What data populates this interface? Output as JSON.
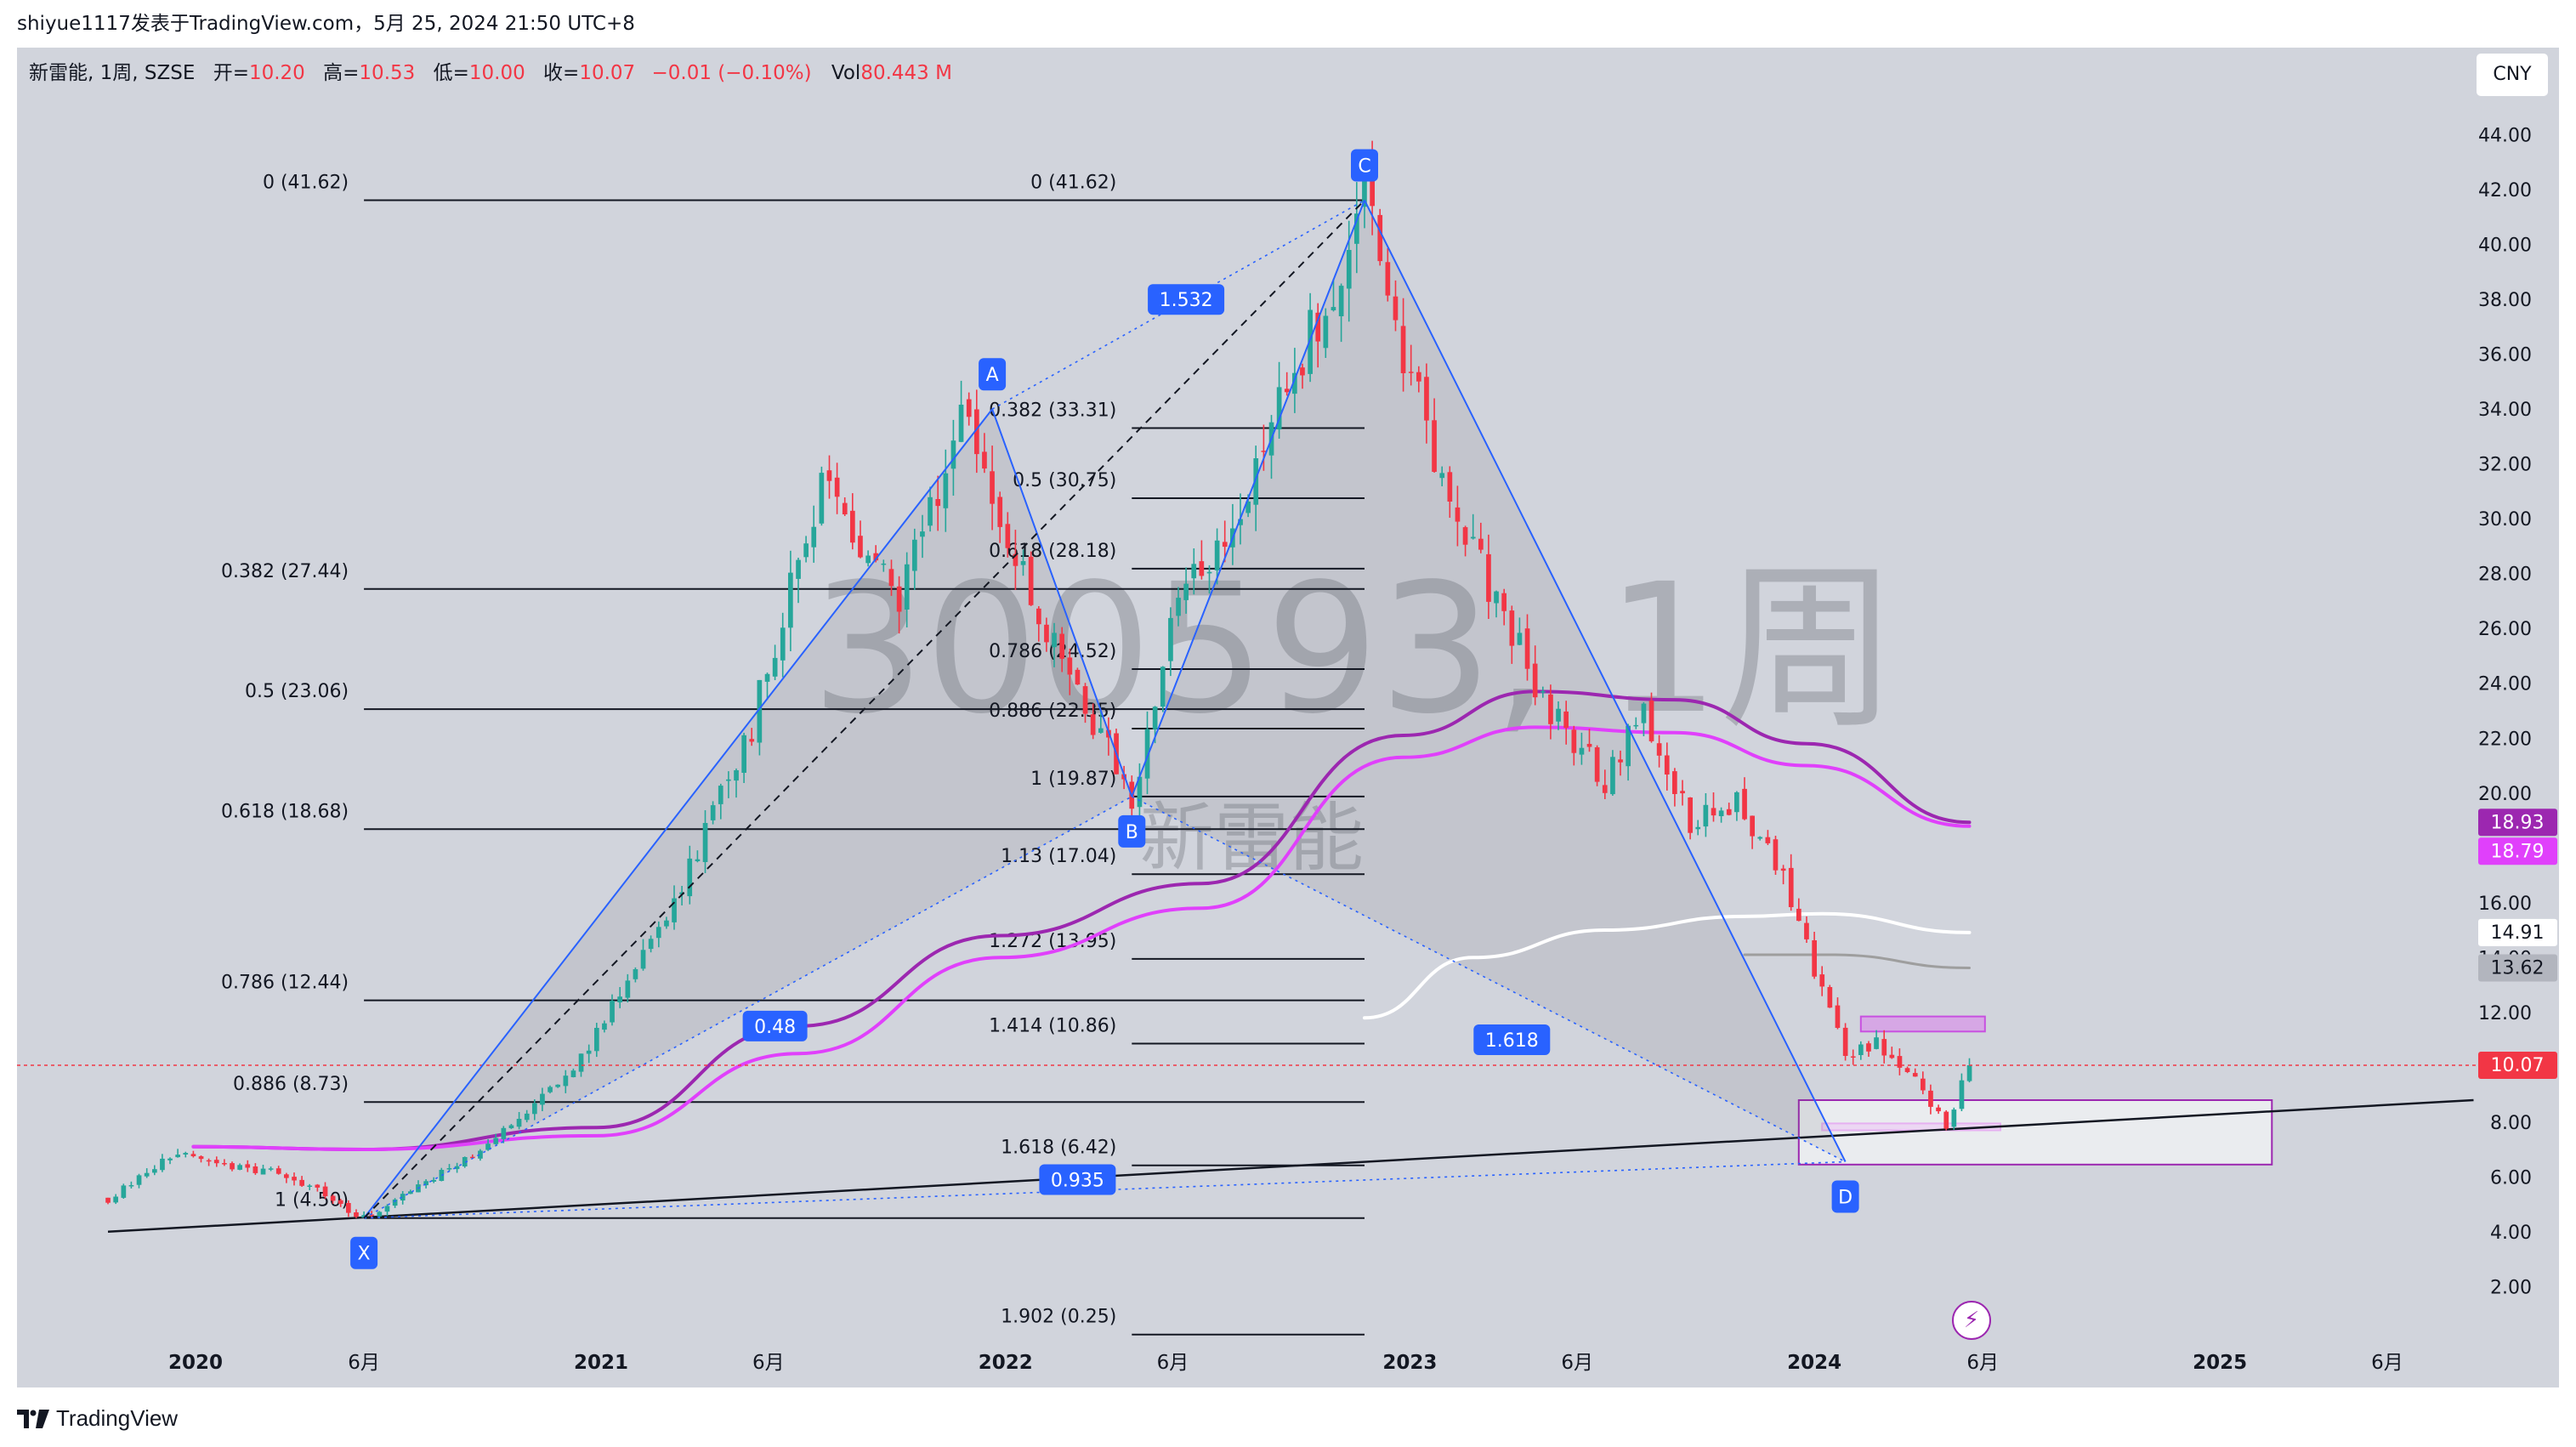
{
  "header": {
    "title": "shiyue1117发表于TradingView.com，5月 25, 2024 21:50 UTC+8"
  },
  "legend": {
    "symbol": "新雷能, 1周, SZSE",
    "open_label": "开=",
    "open": "10.20",
    "high_label": "高=",
    "high": "10.53",
    "low_label": "低=",
    "low": "10.00",
    "close_label": "收=",
    "close": "10.07",
    "change": "−0.01 (−0.10%)",
    "vol_label": "Vol",
    "vol": "80.443 M"
  },
  "currency_button": "CNY",
  "watermark": {
    "ticker": "300593, 1周",
    "name": "新雷能"
  },
  "footer": {
    "brand": "TradingView"
  },
  "colors": {
    "up": "#26a69a",
    "down": "#f23645",
    "pattern_blue": "#2962ff",
    "ma_purple": "#9c27b0",
    "ma_magenta": "#e040fb",
    "ma_white": "#ffffff",
    "ma_gray": "#9e9e9e",
    "price_line": "#f23645",
    "background": "#d1d4dc"
  },
  "chart_data": {
    "type": "candlestick",
    "title": "新雷能, 1周, SZSE",
    "ylim": [
      0.8,
      45.2
    ],
    "y_ticks": [
      "2.00",
      "4.00",
      "6.00",
      "8.00",
      "10.00",
      "12.00",
      "14.00",
      "16.00",
      "18.00",
      "20.00",
      "22.00",
      "24.00",
      "26.00",
      "28.00",
      "30.00",
      "32.00",
      "34.00",
      "36.00",
      "38.00",
      "40.00",
      "42.00",
      "44.00"
    ],
    "x_ticks": [
      {
        "label": "2020",
        "date": "2020-01-01",
        "bold": true
      },
      {
        "label": "6月",
        "date": "2020-06-01"
      },
      {
        "label": "2021",
        "date": "2021-01-01",
        "bold": true
      },
      {
        "label": "6月",
        "date": "2021-06-01"
      },
      {
        "label": "2022",
        "date": "2022-01-01",
        "bold": true
      },
      {
        "label": "6月",
        "date": "2022-06-01"
      },
      {
        "label": "2023",
        "date": "2023-01-01",
        "bold": true
      },
      {
        "label": "6月",
        "date": "2023-06-01"
      },
      {
        "label": "2024",
        "date": "2024-01-01",
        "bold": true
      },
      {
        "label": "6月",
        "date": "2024-06-01"
      },
      {
        "label": "2025",
        "date": "2025-01-01",
        "bold": true
      },
      {
        "label": "6月",
        "date": "2025-06-01"
      }
    ],
    "price_labels": [
      {
        "value": 18.93,
        "text": "18.93",
        "bg": "#9c27b0",
        "fg": "#ffffff"
      },
      {
        "value": 18.79,
        "text": "18.79",
        "bg": "#e040fb",
        "fg": "#ffffff"
      },
      {
        "value": 14.91,
        "text": "14.91",
        "bg": "#ffffff",
        "fg": "#131722"
      },
      {
        "value": 13.62,
        "text": "13.62",
        "bg": "#b2b5be",
        "fg": "#131722"
      },
      {
        "value": 10.07,
        "text": "10.07",
        "bg": "#f23645",
        "fg": "#ffffff"
      }
    ],
    "current_price": 10.07,
    "anchors": [
      {
        "date": "2019-10-14",
        "price": 5.2
      },
      {
        "date": "2019-12-09",
        "price": 6.8
      },
      {
        "date": "2020-03-23",
        "price": 6.1
      },
      {
        "date": "2020-06-01",
        "price": 4.5
      },
      {
        "date": "2020-09-14",
        "price": 6.9
      },
      {
        "date": "2020-12-07",
        "price": 9.8
      },
      {
        "date": "2021-03-01",
        "price": 15.5
      },
      {
        "date": "2021-05-17",
        "price": 22.5
      },
      {
        "date": "2021-07-19",
        "price": 31.5
      },
      {
        "date": "2021-09-27",
        "price": 26.8
      },
      {
        "date": "2021-11-22",
        "price": 34.0
      },
      {
        "date": "2022-01-17",
        "price": 28.0
      },
      {
        "date": "2022-03-14",
        "price": 23.0
      },
      {
        "date": "2022-04-25",
        "price": 19.87
      },
      {
        "date": "2022-06-06",
        "price": 27.0
      },
      {
        "date": "2022-08-01",
        "price": 30.5
      },
      {
        "date": "2022-09-26",
        "price": 36.0
      },
      {
        "date": "2022-11-21",
        "price": 41.62
      },
      {
        "date": "2023-01-16",
        "price": 33.0
      },
      {
        "date": "2023-03-13",
        "price": 27.5
      },
      {
        "date": "2023-05-08",
        "price": 23.0
      },
      {
        "date": "2023-06-26",
        "price": 20.5
      },
      {
        "date": "2023-07-31",
        "price": 23.0
      },
      {
        "date": "2023-09-11",
        "price": 19.0
      },
      {
        "date": "2023-10-23",
        "price": 19.5
      },
      {
        "date": "2023-12-04",
        "price": 16.8
      },
      {
        "date": "2024-01-29",
        "price": 10.5
      },
      {
        "date": "2024-02-26",
        "price": 11.0
      },
      {
        "date": "2024-04-08",
        "price": 9.2
      },
      {
        "date": "2024-04-29",
        "price": 7.8
      },
      {
        "date": "2024-05-20",
        "price": 10.07
      }
    ],
    "moving_averages": [
      {
        "color": "#9c27b0",
        "width": 4,
        "points": [
          {
            "date": "2019-12-30",
            "price": 7.1
          },
          {
            "date": "2020-06-01",
            "price": 7.0
          },
          {
            "date": "2020-12-28",
            "price": 7.8
          },
          {
            "date": "2021-06-28",
            "price": 11.5
          },
          {
            "date": "2021-12-27",
            "price": 14.8
          },
          {
            "date": "2022-06-27",
            "price": 16.7
          },
          {
            "date": "2022-12-26",
            "price": 22.1
          },
          {
            "date": "2023-04-24",
            "price": 23.7
          },
          {
            "date": "2023-08-28",
            "price": 23.4
          },
          {
            "date": "2023-12-25",
            "price": 21.8
          },
          {
            "date": "2024-05-20",
            "price": 18.93
          }
        ]
      },
      {
        "color": "#e040fb",
        "width": 4,
        "points": [
          {
            "date": "2019-12-30",
            "price": 7.1
          },
          {
            "date": "2020-06-01",
            "price": 7.0
          },
          {
            "date": "2020-12-28",
            "price": 7.5
          },
          {
            "date": "2021-06-28",
            "price": 10.5
          },
          {
            "date": "2021-12-27",
            "price": 14.0
          },
          {
            "date": "2022-06-27",
            "price": 15.8
          },
          {
            "date": "2022-12-26",
            "price": 21.3
          },
          {
            "date": "2023-04-24",
            "price": 22.4
          },
          {
            "date": "2023-08-28",
            "price": 22.2
          },
          {
            "date": "2023-12-25",
            "price": 21.0
          },
          {
            "date": "2024-05-20",
            "price": 18.79
          }
        ]
      },
      {
        "color": "#ffffff",
        "width": 4,
        "points": [
          {
            "date": "2022-11-21",
            "price": 11.8
          },
          {
            "date": "2023-02-27",
            "price": 14.0
          },
          {
            "date": "2023-06-26",
            "price": 15.0
          },
          {
            "date": "2023-10-30",
            "price": 15.5
          },
          {
            "date": "2024-01-08",
            "price": 15.6
          },
          {
            "date": "2024-05-20",
            "price": 14.91
          }
        ]
      },
      {
        "color": "#9e9e9e",
        "width": 3,
        "points": [
          {
            "date": "2023-10-30",
            "price": 14.1
          },
          {
            "date": "2024-01-15",
            "price": 14.1
          },
          {
            "date": "2024-05-20",
            "price": 13.62
          }
        ]
      }
    ],
    "xabcd": {
      "points": [
        {
          "label": "X",
          "date": "2020-06-01",
          "price": 4.5
        },
        {
          "label": "A",
          "date": "2021-12-20",
          "price": 34.0
        },
        {
          "label": "B",
          "date": "2022-04-25",
          "price": 19.87
        },
        {
          "label": "C",
          "date": "2022-11-21",
          "price": 41.62
        },
        {
          "label": "D",
          "date": "2024-01-29",
          "price": 6.55
        }
      ],
      "ratios": [
        {
          "text": "0.48",
          "date": "2021-06-07",
          "price": 11.5
        },
        {
          "text": "1.532",
          "date": "2022-06-13",
          "price": 38.0
        },
        {
          "text": "1.618",
          "date": "2023-04-03",
          "price": 11.0
        },
        {
          "text": "0.935",
          "date": "2022-03-07",
          "price": 5.9
        }
      ]
    },
    "fib_left": {
      "start": "2020-06-01",
      "end": "2022-11-21",
      "levels": [
        {
          "text": "0 (41.62)",
          "price": 41.62
        },
        {
          "text": "0.382 (27.44)",
          "price": 27.44
        },
        {
          "text": "0.5 (23.06)",
          "price": 23.06
        },
        {
          "text": "0.618 (18.68)",
          "price": 18.68
        },
        {
          "text": "0.786 (12.44)",
          "price": 12.44
        },
        {
          "text": "0.886 (8.73)",
          "price": 8.73
        },
        {
          "text": "1 (4.50)",
          "price": 4.5
        }
      ]
    },
    "fib_right": {
      "start": "2022-04-25",
      "end": "2022-11-21",
      "levels": [
        {
          "text": "0 (41.62)",
          "price": 41.62
        },
        {
          "text": "0.382 (33.31)",
          "price": 33.31
        },
        {
          "text": "0.5 (30.75)",
          "price": 30.75
        },
        {
          "text": "0.618 (28.18)",
          "price": 28.18
        },
        {
          "text": "0.786 (24.52)",
          "price": 24.52
        },
        {
          "text": "0.886 (22.35)",
          "price": 22.35
        },
        {
          "text": "1 (19.87)",
          "price": 19.87
        },
        {
          "text": "1.13 (17.04)",
          "price": 17.04
        },
        {
          "text": "1.272 (13.95)",
          "price": 13.95
        },
        {
          "text": "1.414 (10.86)",
          "price": 10.86
        },
        {
          "text": "1.618 (6.42)",
          "price": 6.42
        },
        {
          "text": "1.902 (0.25)",
          "price": 0.25
        }
      ]
    },
    "trendline": [
      {
        "date": "2019-10-14",
        "price": 4.0
      },
      {
        "date": "2025-08-18",
        "price": 8.8
      }
    ],
    "zones": [
      {
        "date1": "2024-02-12",
        "date2": "2024-06-03",
        "price1": 11.3,
        "price2": 11.85,
        "fill": "rgba(224,64,251,0.30)",
        "stroke": "#c850e0"
      },
      {
        "date1": "2024-01-08",
        "date2": "2024-06-17",
        "price1": 7.7,
        "price2": 7.95,
        "fill": "rgba(224,64,251,0.30)",
        "stroke": "#c850e0"
      },
      {
        "date1": "2023-12-18",
        "date2": "2025-02-17",
        "price1": 6.45,
        "price2": 8.8,
        "fill": "rgba(255,255,255,0.55)",
        "stroke": "#9c27b0"
      }
    ]
  }
}
